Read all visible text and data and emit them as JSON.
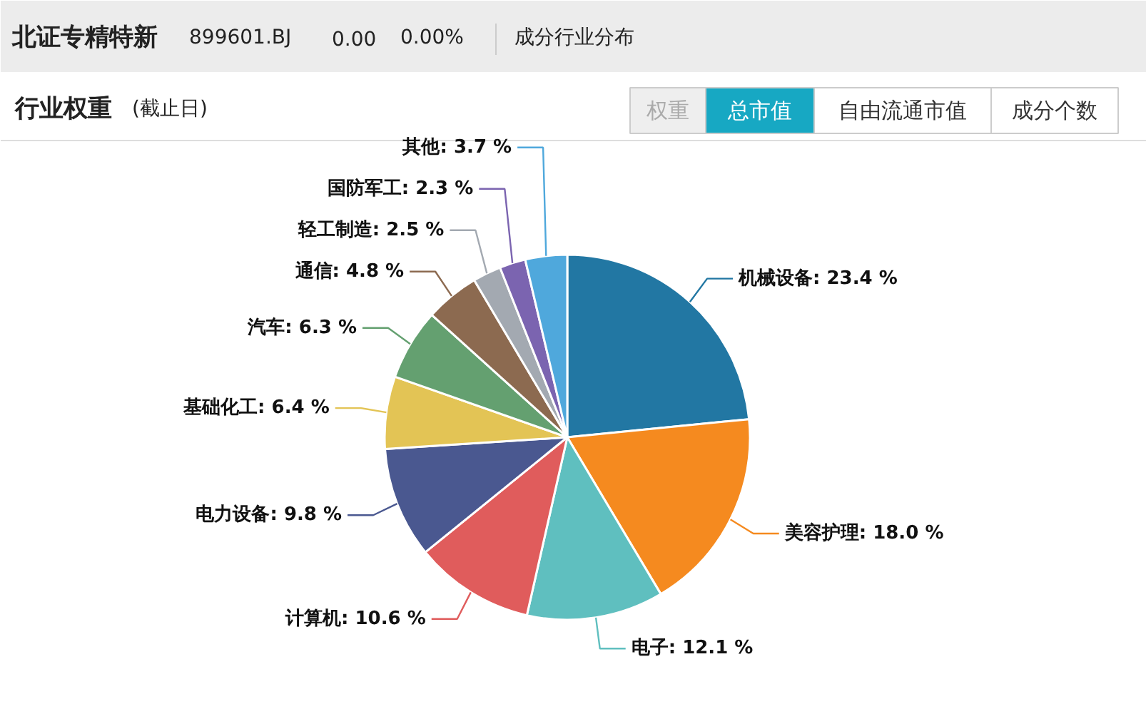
{
  "chart_data": {
    "type": "pie",
    "title": "行业权重",
    "subtitle": "(截止日)",
    "categories": [
      "机械设备",
      "美容护理",
      "电子",
      "计算机",
      "电力设备",
      "基础化工",
      "汽车",
      "通信",
      "轻工制造",
      "国防军工",
      "其他"
    ],
    "values": [
      23.4,
      18.0,
      12.1,
      10.6,
      9.8,
      6.4,
      6.3,
      4.8,
      2.5,
      2.3,
      3.7
    ],
    "value_labels": [
      "23.4 %",
      "18.0 %",
      "12.1 %",
      "10.6 %",
      "9.8 %",
      "6.4 %",
      "6.3 %",
      "4.8 %",
      "2.5 %",
      "2.3 %",
      "3.7 %"
    ],
    "colors": [
      "#2277a3",
      "#f58a1f",
      "#5fbfbf",
      "#e05c5c",
      "#4a5890",
      "#e3c455",
      "#64a070",
      "#8c6a50",
      "#a3a9b1",
      "#7b64b0",
      "#4fa8dc"
    ],
    "annotations": [
      "北证专精特新",
      "899601.BJ",
      "0.00",
      "0.00%",
      "成分行业分布",
      "权重",
      "总市值",
      "自由流通市值",
      "成分个数"
    ]
  }
}
